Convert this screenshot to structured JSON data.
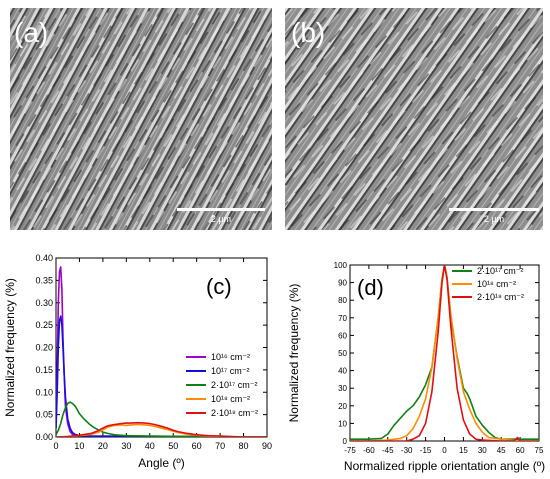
{
  "panels": {
    "a": {
      "label": "(a)",
      "scale_bar": "2 µm"
    },
    "b": {
      "label": "(b)",
      "scale_bar": "2 µm"
    }
  },
  "colors": {
    "violet": "#a000c8",
    "blue": "#1010e0",
    "green": "#108010",
    "orange": "#ff8c00",
    "red": "#e01010"
  },
  "chart_data": [
    {
      "panel_label": "(c)",
      "type": "line",
      "xlabel": "Angle (º)",
      "ylabel": "Normalized frequency (%)",
      "xlim": [
        0,
        90
      ],
      "ylim": [
        0,
        0.4
      ],
      "xticks": [
        "0",
        "10",
        "20",
        "30",
        "40",
        "50",
        "60",
        "70",
        "80",
        "90"
      ],
      "yticks": [
        "0.00",
        "0.05",
        "0.10",
        "0.15",
        "0.20",
        "0.25",
        "0.30",
        "0.35",
        "0.40"
      ],
      "legend_position": "center-right",
      "series": [
        {
          "name": "10¹⁶ cm⁻²",
          "color": "#a000c8",
          "x": [
            0,
            0.5,
            1,
            1.5,
            2,
            2.5,
            3,
            3.5,
            4,
            5,
            6,
            7,
            8,
            10,
            15,
            90
          ],
          "y": [
            0.02,
            0.15,
            0.3,
            0.37,
            0.38,
            0.33,
            0.22,
            0.14,
            0.07,
            0.03,
            0.012,
            0.006,
            0.004,
            0.003,
            0.002,
            0
          ]
        },
        {
          "name": "10¹⁷ cm⁻²",
          "color": "#1010e0",
          "x": [
            0,
            0.5,
            1,
            1.5,
            2,
            2.5,
            3,
            3.5,
            4,
            5,
            6,
            7,
            8,
            10,
            15,
            90
          ],
          "y": [
            0.02,
            0.1,
            0.2,
            0.26,
            0.27,
            0.25,
            0.2,
            0.14,
            0.09,
            0.04,
            0.02,
            0.01,
            0.006,
            0.003,
            0.002,
            0
          ]
        },
        {
          "name": "2·10¹⁷ cm⁻²",
          "color": "#108010",
          "x": [
            0,
            1,
            2,
            3,
            4,
            5,
            6,
            7,
            8,
            9,
            10,
            12,
            14,
            16,
            18,
            20,
            22,
            25,
            30,
            40,
            60,
            90
          ],
          "y": [
            0.005,
            0.015,
            0.03,
            0.05,
            0.065,
            0.075,
            0.078,
            0.075,
            0.07,
            0.062,
            0.052,
            0.04,
            0.03,
            0.022,
            0.016,
            0.011,
            0.008,
            0.005,
            0.003,
            0.002,
            0.001,
            0
          ]
        },
        {
          "name": "10¹⁸ cm⁻²",
          "color": "#ff8c00",
          "x": [
            0,
            5,
            10,
            15,
            18,
            20,
            22,
            25,
            28,
            30,
            32,
            35,
            38,
            40,
            42,
            45,
            48,
            50,
            52,
            55,
            60,
            65,
            70,
            75,
            80,
            90
          ],
          "y": [
            0,
            0.001,
            0.003,
            0.006,
            0.01,
            0.016,
            0.022,
            0.026,
            0.027,
            0.026,
            0.027,
            0.028,
            0.027,
            0.026,
            0.024,
            0.02,
            0.016,
            0.013,
            0.01,
            0.007,
            0.004,
            0.002,
            0.001,
            0.0005,
            0,
            0
          ]
        },
        {
          "name": "2·10¹⁸ cm⁻²",
          "color": "#e01010",
          "x": [
            0,
            5,
            10,
            15,
            18,
            20,
            22,
            25,
            28,
            30,
            32,
            35,
            38,
            40,
            42,
            45,
            48,
            50,
            52,
            55,
            60,
            65,
            70,
            75,
            80,
            90
          ],
          "y": [
            0,
            0.001,
            0.004,
            0.008,
            0.014,
            0.02,
            0.025,
            0.028,
            0.03,
            0.031,
            0.031,
            0.032,
            0.031,
            0.03,
            0.028,
            0.024,
            0.019,
            0.015,
            0.012,
            0.009,
            0.005,
            0.003,
            0.002,
            0.001,
            0,
            0
          ]
        }
      ]
    },
    {
      "panel_label": "(d)",
      "type": "line",
      "xlabel": "Normalized ripple orientation angle (º)",
      "ylabel": "Normalized frequency (%)",
      "xlim": [
        -75,
        75
      ],
      "ylim": [
        0,
        100
      ],
      "xticks": [
        "-75",
        "-60",
        "-45",
        "-30",
        "-15",
        "0",
        "15",
        "30",
        "45",
        "60",
        "75"
      ],
      "yticks": [
        "0",
        "10",
        "20",
        "30",
        "40",
        "50",
        "60",
        "70",
        "80",
        "90",
        "100"
      ],
      "legend_position": "top-right",
      "series": [
        {
          "name": "2·10¹⁷ cm⁻²",
          "color": "#108010",
          "x": [
            -75,
            -60,
            -50,
            -45,
            -40,
            -35,
            -30,
            -25,
            -20,
            -15,
            -10,
            -5,
            -2,
            0,
            2,
            5,
            10,
            15,
            18,
            20,
            25,
            30,
            35,
            40,
            45,
            50,
            60,
            75
          ],
          "y": [
            1,
            1,
            1.5,
            4,
            9,
            13,
            17,
            20,
            25,
            32,
            42,
            70,
            92,
            100,
            93,
            70,
            48,
            30,
            27,
            24,
            14,
            9,
            5,
            2,
            1,
            1,
            1,
            1
          ]
        },
        {
          "name": "10¹⁸ cm⁻²",
          "color": "#ff8c00",
          "x": [
            -75,
            -60,
            -45,
            -35,
            -30,
            -25,
            -20,
            -15,
            -10,
            -5,
            -2,
            0,
            2,
            5,
            10,
            15,
            20,
            25,
            30,
            35,
            45,
            60,
            75
          ],
          "y": [
            0,
            0,
            0.5,
            1.5,
            3,
            7,
            14,
            24,
            42,
            70,
            92,
            100,
            93,
            72,
            47,
            28,
            18,
            10,
            5,
            2,
            1,
            0,
            0
          ]
        },
        {
          "name": "2·10¹⁸ cm⁻²",
          "color": "#e01010",
          "x": [
            -75,
            -45,
            -30,
            -25,
            -20,
            -15,
            -10,
            -5,
            -2,
            0,
            2,
            5,
            10,
            15,
            20,
            25,
            30,
            45,
            55,
            58,
            60,
            75
          ],
          "y": [
            0,
            0,
            0,
            1,
            3,
            10,
            28,
            62,
            90,
            100,
            92,
            65,
            30,
            12,
            4,
            1,
            0.5,
            0,
            0,
            2,
            0,
            0
          ]
        }
      ]
    }
  ]
}
